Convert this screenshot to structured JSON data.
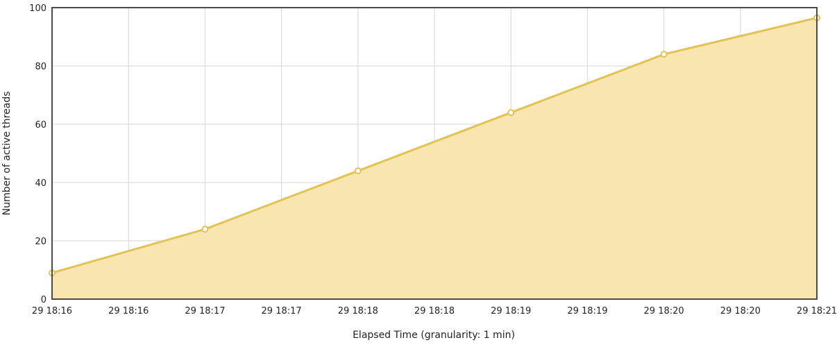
{
  "chart_data": {
    "type": "area",
    "xlabel": "Elapsed Time (granularity: 1 min)",
    "ylabel": "Number of active threads",
    "ylim": [
      0,
      100
    ],
    "y_ticks": [
      0,
      20,
      40,
      60,
      80,
      100
    ],
    "x_tick_labels": [
      "29 18:16",
      "29 18:16",
      "29 18:17",
      "29 18:17",
      "29 18:18",
      "29 18:18",
      "29 18:19",
      "29 18:19",
      "29 18:20",
      "29 18:20",
      "29 18:21"
    ],
    "grid": true,
    "legend": "none",
    "series": [
      {
        "x": [
          "29 18:16",
          "29 18:17",
          "29 18:18",
          "29 18:19",
          "29 18:20",
          "29 18:21"
        ],
        "values": [
          9,
          24,
          44,
          64,
          84,
          96.5
        ]
      }
    ]
  },
  "colors": {
    "line": "#e2c254",
    "fill": "#f8e5b0",
    "marker_fill": "#ffffff",
    "grid": "#d6d6d6",
    "frame": "#4a4a4a"
  }
}
